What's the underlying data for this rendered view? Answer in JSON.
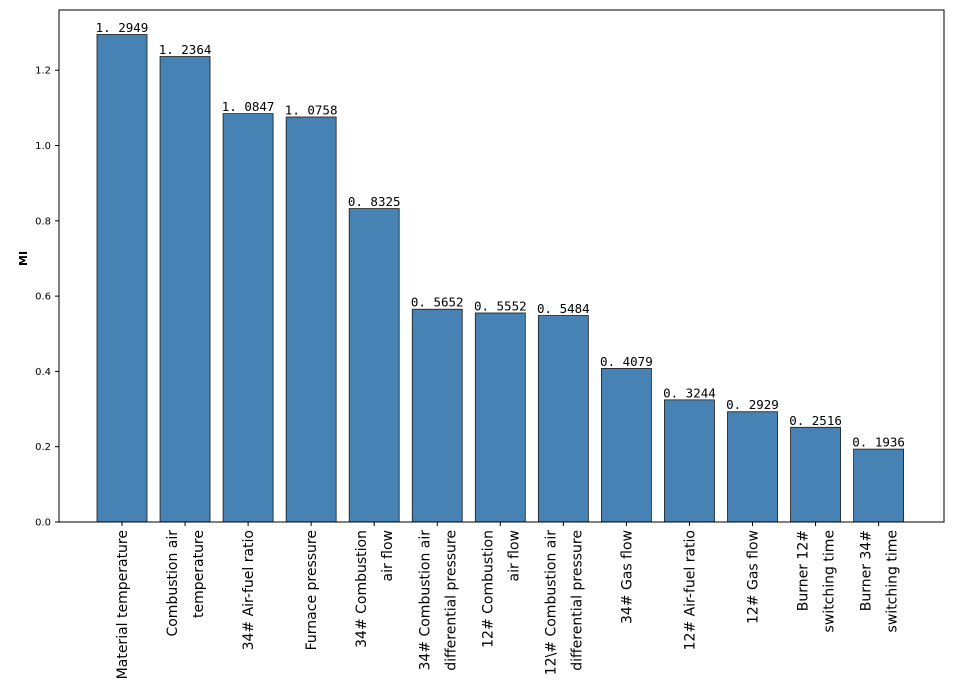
{
  "chart_data": {
    "type": "bar",
    "title": "",
    "xlabel": "",
    "ylabel": "MI",
    "ylim": [
      0,
      1.36
    ],
    "yticks": [
      "0.0",
      "0.2",
      "0.4",
      "0.6",
      "0.8",
      "1.0",
      "1.2"
    ],
    "grid": false,
    "bar_color": "#4682b4",
    "categories": [
      [
        "Material temperature"
      ],
      [
        "Combustion air",
        "temperature"
      ],
      [
        "34# Air-fuel ratio"
      ],
      [
        "Furnace pressure"
      ],
      [
        "34# Combustion",
        "air flow"
      ],
      [
        "34# Combustion air",
        "differential pressure"
      ],
      [
        "12# Combustion",
        "air flow"
      ],
      [
        "12\\# Combustion air",
        "differential pressure"
      ],
      [
        "34# Gas flow"
      ],
      [
        "12# Air-fuel ratio"
      ],
      [
        "12# Gas flow"
      ],
      [
        "Burner 12#",
        "switching time"
      ],
      [
        "Burner 34#",
        "switching time"
      ]
    ],
    "values": [
      1.2949,
      1.2364,
      1.0847,
      1.0758,
      0.8325,
      0.5652,
      0.5552,
      0.5484,
      0.4079,
      0.3244,
      0.2929,
      0.2516,
      0.1936
    ],
    "value_labels": [
      "1.2949",
      "1.2364",
      "1.0847",
      "1.0758",
      "0.8325",
      "0.5652",
      "0.5552",
      "0.5484",
      "0.4079",
      "0.3244",
      "0.2929",
      "0.2516",
      "0.1936"
    ],
    "value_label_display": [
      "1. 2949",
      "1. 2364",
      "1. 0847",
      "1. 0758",
      "0. 8325",
      "0. 5652",
      "0. 5552",
      "0. 5484",
      "0. 4079",
      "0. 3244",
      "0. 2929",
      "0. 2516",
      "0. 1936"
    ]
  }
}
